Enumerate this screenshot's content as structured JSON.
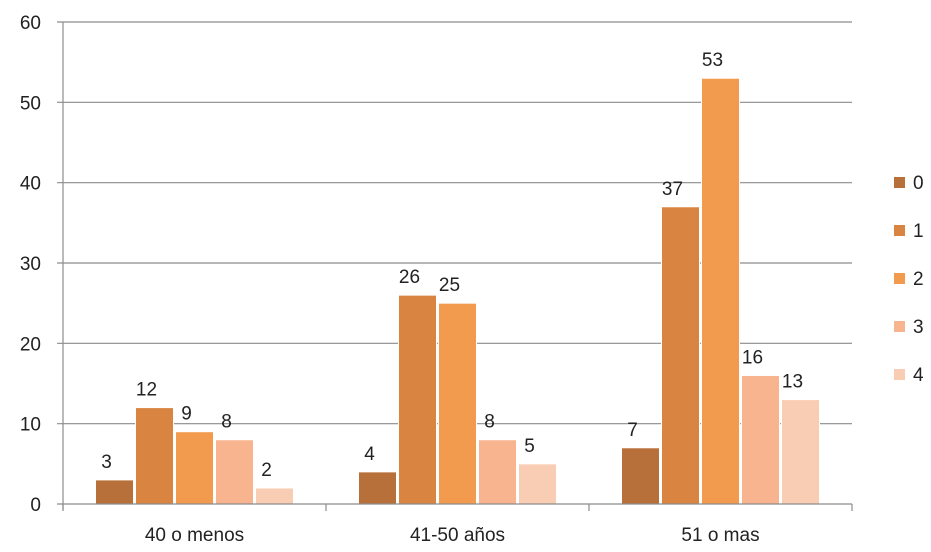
{
  "chart_data": {
    "type": "bar",
    "title": "",
    "xlabel": "",
    "ylabel": "",
    "categories": [
      "40 o menos",
      "41-50 años",
      "51 o mas"
    ],
    "series": [
      {
        "name": "0",
        "color": "#b8703a",
        "values": [
          3,
          4,
          7
        ]
      },
      {
        "name": "1",
        "color": "#d98440",
        "values": [
          12,
          26,
          37
        ]
      },
      {
        "name": "2",
        "color": "#f29a4d",
        "values": [
          9,
          25,
          53
        ]
      },
      {
        "name": "3",
        "color": "#f7b48f",
        "values": [
          8,
          8,
          16
        ]
      },
      {
        "name": "4",
        "color": "#f9cdb3",
        "values": [
          2,
          5,
          13
        ]
      }
    ],
    "ylim": [
      0,
      60
    ],
    "yticks": [
      0,
      10,
      20,
      30,
      40,
      50,
      60
    ],
    "grid": true,
    "legend_position": "right",
    "data_labels": true
  }
}
